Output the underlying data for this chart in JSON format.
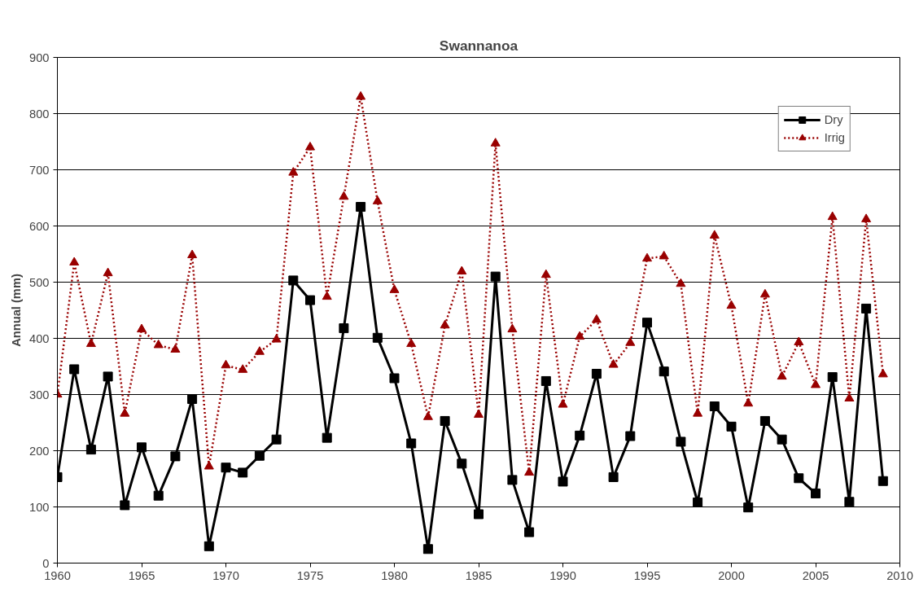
{
  "chart_data": {
    "type": "line",
    "title": "Swannanoa",
    "ylabel": "Annual (mm)",
    "x": [
      1960,
      1961,
      1962,
      1963,
      1964,
      1965,
      1966,
      1967,
      1968,
      1969,
      1970,
      1971,
      1972,
      1973,
      1974,
      1975,
      1976,
      1977,
      1978,
      1979,
      1980,
      1981,
      1982,
      1983,
      1984,
      1985,
      1986,
      1987,
      1988,
      1989,
      1990,
      1991,
      1992,
      1993,
      1994,
      1995,
      1996,
      1997,
      1998,
      1999,
      2000,
      2001,
      2002,
      2003,
      2004,
      2005,
      2006,
      2007,
      2008,
      2009
    ],
    "series": [
      {
        "name": "Dry",
        "color": "#000000",
        "marker": "square",
        "line_style": "solid",
        "values": [
          153,
          345,
          202,
          332,
          103,
          206,
          120,
          190,
          292,
          30,
          170,
          161,
          191,
          220,
          503,
          468,
          223,
          418,
          634,
          401,
          329,
          213,
          25,
          253,
          177,
          87,
          510,
          148,
          55,
          324,
          145,
          227,
          337,
          153,
          226,
          428,
          341,
          216,
          108,
          279,
          243,
          99,
          253,
          220,
          151,
          124,
          331,
          109,
          453,
          146
        ]
      },
      {
        "name": "Irrig",
        "color": "#990000",
        "marker": "triangle",
        "line_style": "dotted",
        "values": [
          300,
          535,
          390,
          516,
          266,
          416,
          388,
          380,
          548,
          172,
          352,
          344,
          376,
          398,
          695,
          740,
          474,
          652,
          830,
          644,
          486,
          390,
          260,
          423,
          519,
          264,
          747,
          416,
          161,
          513,
          282,
          403,
          433,
          353,
          392,
          542,
          546,
          497,
          266,
          583,
          458,
          284,
          478,
          332,
          393,
          317,
          616,
          293,
          612,
          336
        ]
      }
    ],
    "xlim": [
      1960,
      2010
    ],
    "xticks": [
      1960,
      1965,
      1970,
      1975,
      1980,
      1985,
      1990,
      1995,
      2000,
      2005,
      2010
    ],
    "ylim": [
      0,
      900
    ],
    "yticks": [
      0,
      100,
      200,
      300,
      400,
      500,
      600,
      700,
      800,
      900
    ],
    "grid": "y",
    "legend": "top right"
  }
}
